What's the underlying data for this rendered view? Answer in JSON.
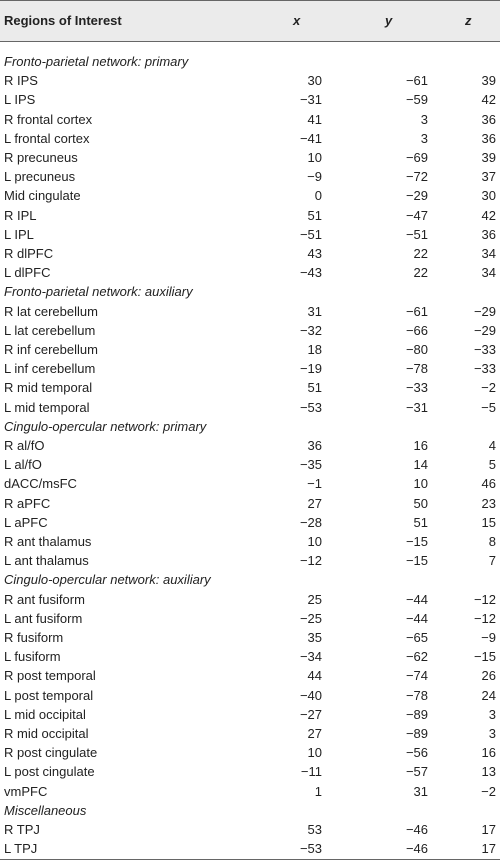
{
  "table": {
    "header": [
      "Regions of Interest",
      "x",
      "y",
      "z"
    ],
    "sections": [
      {
        "title": "Fronto-parietal network: primary",
        "rows": [
          [
            "R IPS",
            "30",
            "−61",
            "39"
          ],
          [
            "L IPS",
            "−31",
            "−59",
            "42"
          ],
          [
            "R frontal cortex",
            "41",
            "3",
            "36"
          ],
          [
            "L frontal cortex",
            "−41",
            "3",
            "36"
          ],
          [
            "R precuneus",
            "10",
            "−69",
            "39"
          ],
          [
            "L precuneus",
            "−9",
            "−72",
            "37"
          ],
          [
            "Mid cingulate",
            "0",
            "−29",
            "30"
          ],
          [
            "R IPL",
            "51",
            "−47",
            "42"
          ],
          [
            "L IPL",
            "−51",
            "−51",
            "36"
          ],
          [
            "R dlPFC",
            "43",
            "22",
            "34"
          ],
          [
            "L dlPFC",
            "−43",
            "22",
            "34"
          ]
        ]
      },
      {
        "title": "Fronto-parietal network: auxiliary",
        "rows": [
          [
            "R lat cerebellum",
            "31",
            "−61",
            "−29"
          ],
          [
            "L lat cerebellum",
            "−32",
            "−66",
            "−29"
          ],
          [
            "R inf cerebellum",
            "18",
            "−80",
            "−33"
          ],
          [
            "L inf cerebellum",
            "−19",
            "−78",
            "−33"
          ],
          [
            "R mid temporal",
            "51",
            "−33",
            "−2"
          ],
          [
            "L mid temporal",
            "−53",
            "−31",
            "−5"
          ]
        ]
      },
      {
        "title": "Cingulo-opercular network: primary",
        "rows": [
          [
            "R al/fO",
            "36",
            "16",
            "4"
          ],
          [
            "L al/fO",
            "−35",
            "14",
            "5"
          ],
          [
            "dACC/msFC",
            "−1",
            "10",
            "46"
          ],
          [
            "R aPFC",
            "27",
            "50",
            "23"
          ],
          [
            "L aPFC",
            "−28",
            "51",
            "15"
          ],
          [
            "R ant thalamus",
            "10",
            "−15",
            "8"
          ],
          [
            "L ant thalamus",
            "−12",
            "−15",
            "7"
          ]
        ]
      },
      {
        "title": "Cingulo-opercular network: auxiliary",
        "rows": [
          [
            "R ant fusiform",
            "25",
            "−44",
            "−12"
          ],
          [
            "L ant fusiform",
            "−25",
            "−44",
            "−12"
          ],
          [
            "R fusiform",
            "35",
            "−65",
            "−9"
          ],
          [
            "L fusiform",
            "−34",
            "−62",
            "−15"
          ],
          [
            "R post temporal",
            "44",
            "−74",
            "26"
          ],
          [
            "L post temporal",
            "−40",
            "−78",
            "24"
          ],
          [
            "L mid occipital",
            "−27",
            "−89",
            "3"
          ],
          [
            "R mid occipital",
            "27",
            "−89",
            "3"
          ],
          [
            "R post cingulate",
            "10",
            "−56",
            "16"
          ],
          [
            "L post cingulate",
            "−11",
            "−57",
            "13"
          ],
          [
            "vmPFC",
            "1",
            "31",
            "−2"
          ]
        ]
      },
      {
        "title": "Miscellaneous",
        "rows": [
          [
            "R TPJ",
            "53",
            "−46",
            "17"
          ],
          [
            "L TPJ",
            "−53",
            "−46",
            "17"
          ]
        ]
      }
    ]
  }
}
